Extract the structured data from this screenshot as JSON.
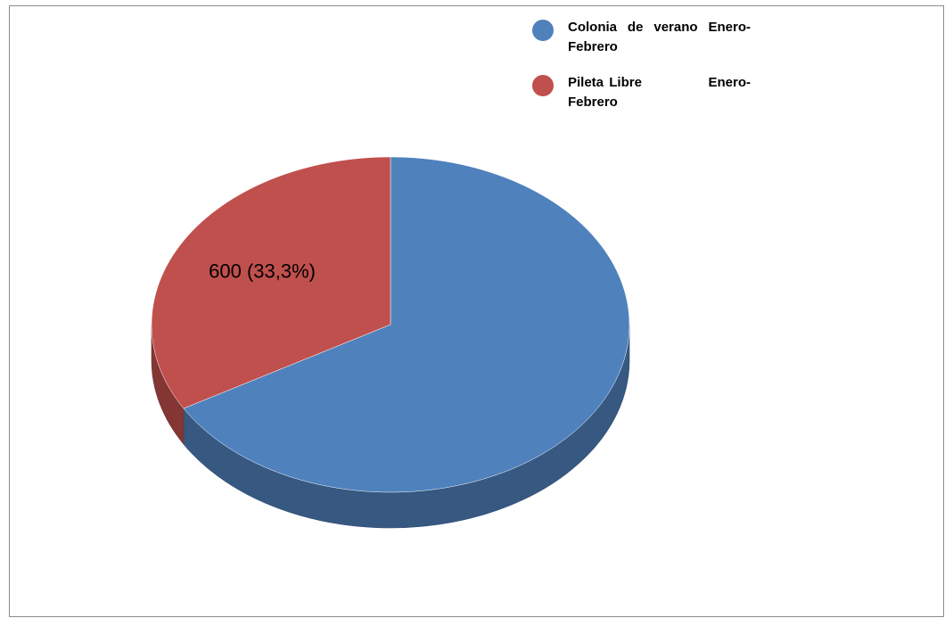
{
  "chart_data": {
    "type": "pie",
    "style": "3d",
    "series": [
      {
        "categories": [
          "Colonia de verano Enero-Febrero",
          "Pileta Libre Enero-Febrero"
        ],
        "values": [
          1200,
          600
        ],
        "percents": [
          66.7,
          33.3
        ],
        "colors": [
          "#4f81bd",
          "#c0504d"
        ],
        "data_labels": [
          "",
          "600 (33,3%)"
        ]
      }
    ],
    "legend": {
      "position": "top-right",
      "items": [
        {
          "label": "Colonia de verano Enero-Febrero",
          "color": "#4f81bd"
        },
        {
          "label": "Pileta Libre            Enero-Febrero",
          "color": "#c0504d"
        }
      ]
    }
  }
}
